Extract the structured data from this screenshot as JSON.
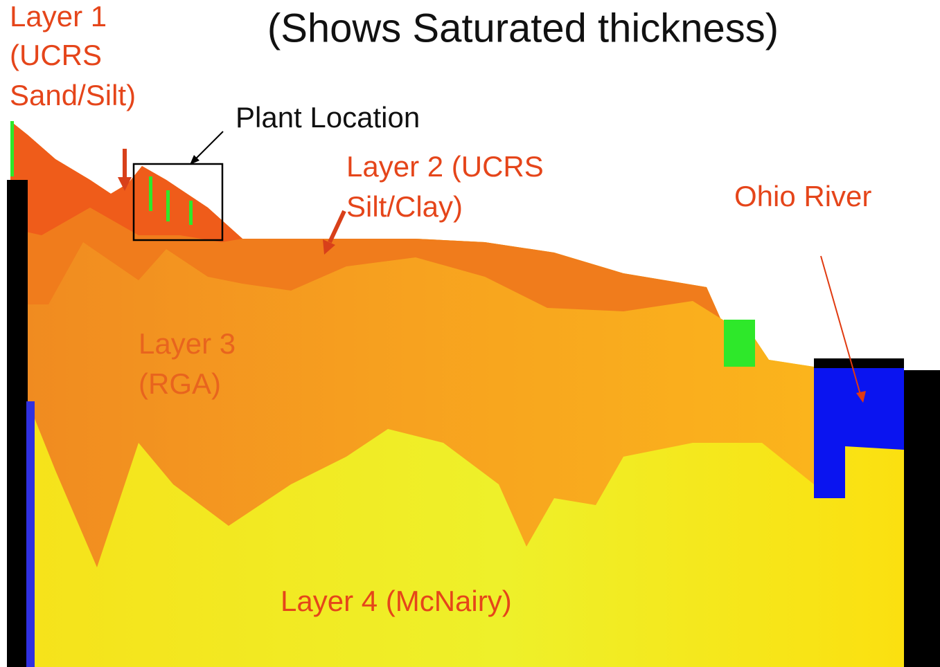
{
  "title": "(Shows Saturated thickness)",
  "layers": [
    {
      "lines": [
        "Layer 1",
        "(UCRS",
        "Sand/Silt)"
      ]
    },
    {
      "lines": [
        "Layer 2 (UCRS",
        "Silt/Clay)"
      ]
    },
    {
      "lines": [
        "Layer 3",
        "(RGA)"
      ]
    },
    {
      "lines": [
        "Layer 4 (McNairy)"
      ]
    }
  ],
  "annotations": {
    "plant": "Plant Location",
    "river": "Ohio River"
  }
}
